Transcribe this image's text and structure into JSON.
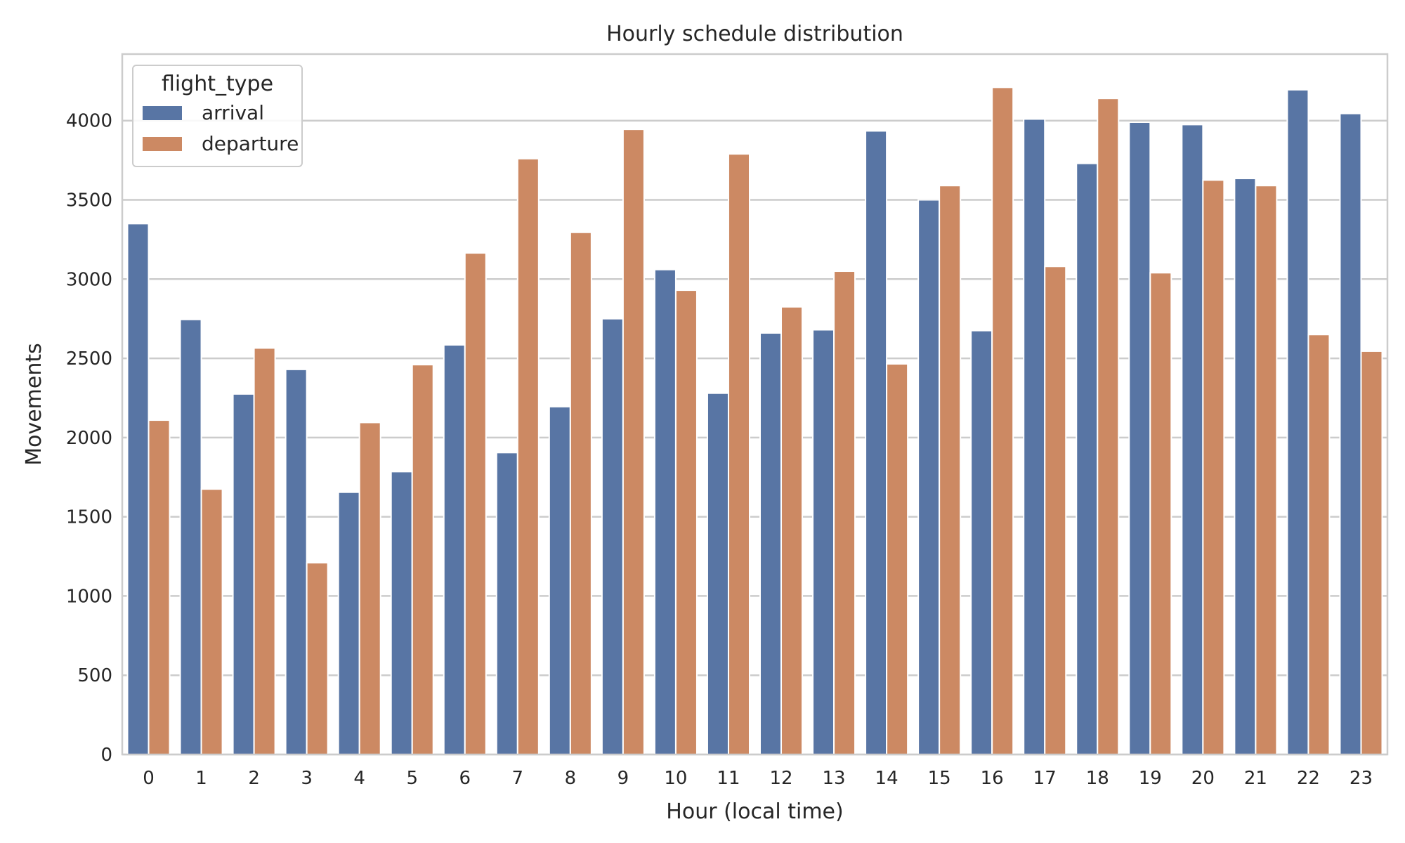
{
  "chart_data": {
    "type": "bar",
    "title": "Hourly schedule distribution",
    "xlabel": "Hour (local time)",
    "ylabel": "Movements",
    "categories": [
      "0",
      "1",
      "2",
      "3",
      "4",
      "5",
      "6",
      "7",
      "8",
      "9",
      "10",
      "11",
      "12",
      "13",
      "14",
      "15",
      "16",
      "17",
      "18",
      "19",
      "20",
      "21",
      "22",
      "23"
    ],
    "series": [
      {
        "name": "arrival",
        "color": "#5875a4",
        "values": [
          3350,
          2745,
          2275,
          2430,
          1655,
          1785,
          2585,
          1905,
          2195,
          2750,
          3060,
          2280,
          2660,
          2680,
          3935,
          3500,
          2675,
          4010,
          3730,
          3990,
          3975,
          3635,
          4195,
          4045
        ]
      },
      {
        "name": "departure",
        "color": "#cc8963",
        "values": [
          2110,
          1675,
          2565,
          1210,
          2095,
          2460,
          3165,
          3760,
          3295,
          3945,
          2930,
          3790,
          2825,
          3050,
          2465,
          3590,
          4210,
          3080,
          4140,
          3040,
          3625,
          3590,
          2650,
          2545
        ]
      }
    ],
    "ylim": [
      0,
      4420
    ],
    "yticks": [
      0,
      500,
      1000,
      1500,
      2000,
      2500,
      3000,
      3500,
      4000
    ],
    "grid": "horizontal",
    "legend": {
      "title": "flight_type",
      "placement": "top-left"
    }
  }
}
